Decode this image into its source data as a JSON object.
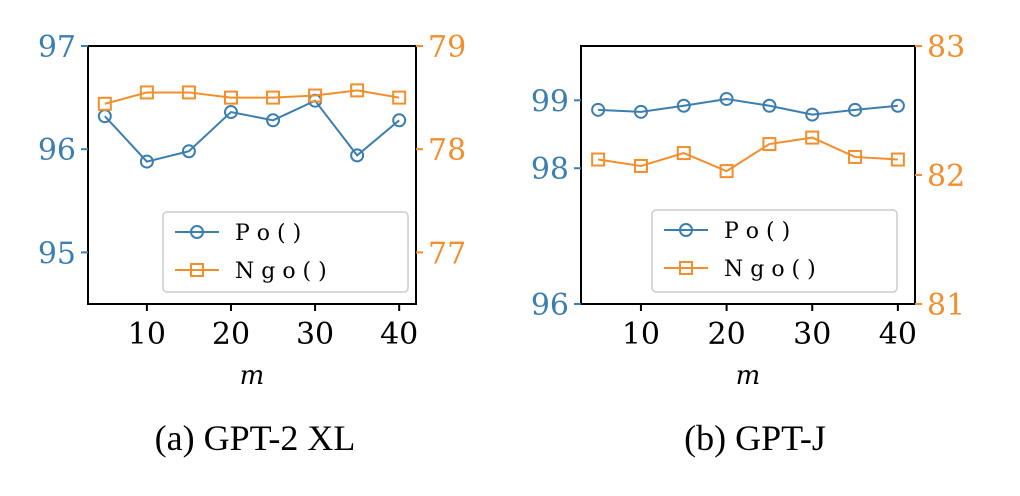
{
  "colors": {
    "blue": "#3b7fb0",
    "orange": "#f28e2b"
  },
  "chart_data": [
    {
      "type": "line",
      "caption": "(a) GPT-2 XL",
      "xlabel": "m",
      "x": [
        5,
        10,
        15,
        20,
        25,
        30,
        35,
        40
      ],
      "xticks": [
        10,
        20,
        30,
        40
      ],
      "xlim": [
        3,
        42
      ],
      "ylim_left": [
        94.5,
        97
      ],
      "yticks_left": [
        95,
        96,
        97
      ],
      "ylim_right": [
        76.5,
        79
      ],
      "yticks_right": [
        77,
        78,
        79
      ],
      "legend_position": "lower-right",
      "series": [
        {
          "name": "P o ( )",
          "axis": "left",
          "marker": "circle",
          "color": "#3b7fb0",
          "values": [
            96.32,
            95.88,
            95.98,
            96.36,
            96.28,
            96.47,
            95.94,
            96.28
          ]
        },
        {
          "name": "N g o ( )",
          "axis": "right",
          "marker": "square",
          "color": "#f28e2b",
          "values": [
            78.44,
            78.55,
            78.55,
            78.5,
            78.5,
            78.52,
            78.57,
            78.5
          ]
        }
      ]
    },
    {
      "type": "line",
      "caption": "(b) GPT-J",
      "xlabel": "m",
      "x": [
        5,
        10,
        15,
        20,
        25,
        30,
        35,
        40
      ],
      "xticks": [
        10,
        20,
        30,
        40
      ],
      "xlim": [
        3,
        42
      ],
      "ylim_left": [
        96,
        99.8
      ],
      "yticks_left": [
        96,
        98,
        99
      ],
      "ylim_right": [
        81,
        83
      ],
      "yticks_right": [
        81,
        82,
        83
      ],
      "legend_position": "lower-right",
      "series": [
        {
          "name": "P o ( )",
          "axis": "left",
          "marker": "circle",
          "color": "#3b7fb0",
          "values": [
            98.86,
            98.83,
            98.92,
            99.02,
            98.92,
            98.79,
            98.86,
            98.92
          ]
        },
        {
          "name": "N g o ( )",
          "axis": "right",
          "marker": "square",
          "color": "#f28e2b",
          "values": [
            82.12,
            82.07,
            82.17,
            82.03,
            82.24,
            82.29,
            82.14,
            82.12
          ]
        }
      ]
    }
  ]
}
